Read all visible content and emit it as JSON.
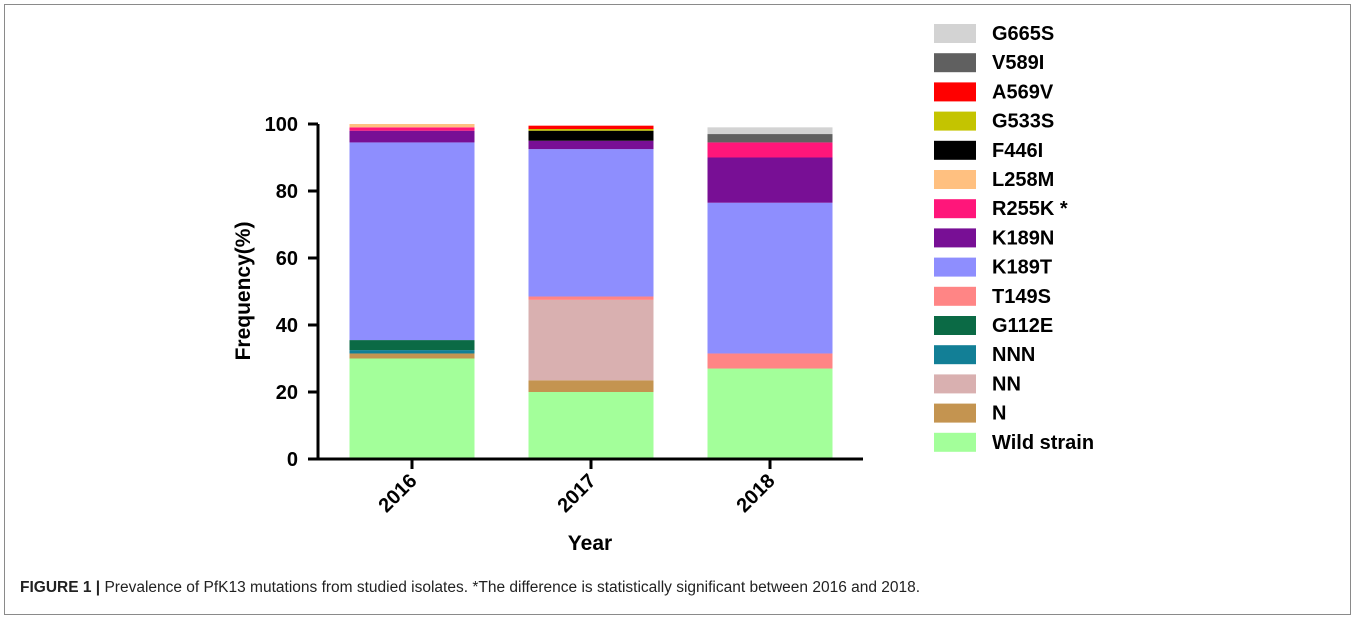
{
  "chart_data": {
    "type": "bar",
    "stacked": true,
    "xlabel": "Year",
    "ylabel": "Frequency(%)",
    "ylim": [
      0,
      100
    ],
    "yticks": [
      0,
      20,
      40,
      60,
      80,
      100
    ],
    "categories": [
      "2016",
      "2017",
      "2018"
    ],
    "legend_position": "right",
    "series": [
      {
        "name": "Wild strain",
        "color": "#a3ff9a",
        "values": [
          30,
          20,
          27
        ]
      },
      {
        "name": "N",
        "color": "#c49450",
        "values": [
          1.5,
          3.5,
          0
        ]
      },
      {
        "name": "NN",
        "color": "#d9b0b0",
        "values": [
          0,
          24,
          0
        ]
      },
      {
        "name": "NNN",
        "color": "#127f96",
        "values": [
          1,
          0,
          0
        ]
      },
      {
        "name": "G112E",
        "color": "#0b6a45",
        "values": [
          3,
          0,
          0
        ]
      },
      {
        "name": "T149S",
        "color": "#ff8585",
        "values": [
          0,
          1,
          4.5
        ]
      },
      {
        "name": "K189T",
        "color": "#8e8efe",
        "values": [
          59,
          44,
          45
        ]
      },
      {
        "name": "K189N",
        "color": "#780f95",
        "values": [
          3.5,
          2.5,
          13.5
        ]
      },
      {
        "name": "R255K *",
        "color": "#ff167a",
        "values": [
          1,
          0,
          4.5
        ]
      },
      {
        "name": "L258M",
        "color": "#ffc080",
        "values": [
          1,
          0,
          0
        ]
      },
      {
        "name": "F446I",
        "color": "#000000",
        "values": [
          0,
          3,
          0
        ]
      },
      {
        "name": "G533S",
        "color": "#c4c400",
        "values": [
          0,
          0.5,
          0
        ]
      },
      {
        "name": "A569V",
        "color": "#ff0000",
        "values": [
          0,
          1,
          0
        ]
      },
      {
        "name": "V589I",
        "color": "#606060",
        "values": [
          0,
          0,
          2.5
        ]
      },
      {
        "name": "G665S",
        "color": "#d3d3d3",
        "values": [
          0,
          0,
          2
        ]
      }
    ]
  },
  "caption": {
    "lead": "FIGURE 1 |",
    "text": " Prevalence of PfK13 mutations from studied isolates. *The difference is statistically significant between 2016 and 2018."
  }
}
